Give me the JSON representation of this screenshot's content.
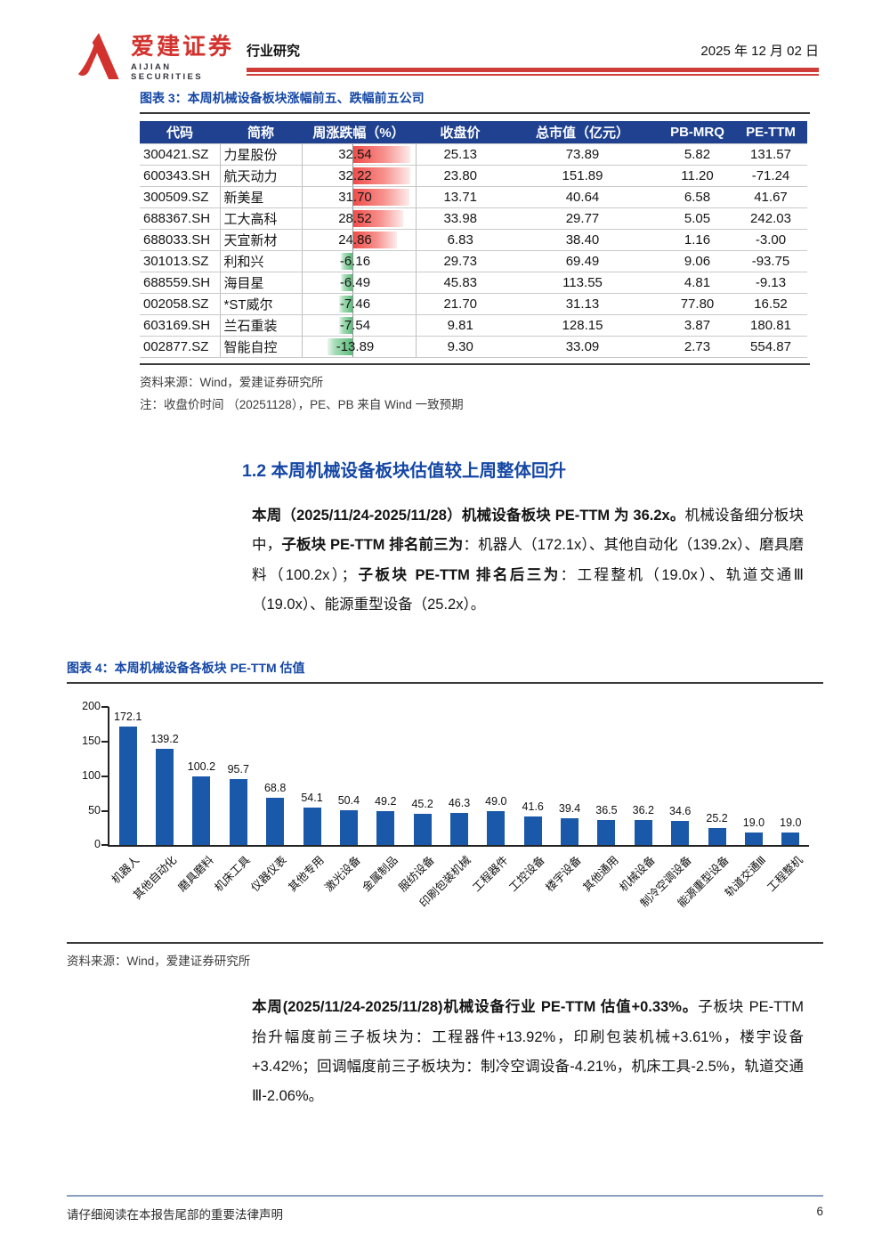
{
  "header": {
    "brand_cn": "爱建证券",
    "brand_en": "AIJIAN SECURITIES",
    "doc_type": "行业研究",
    "date": "2025 年 12 月 02 日"
  },
  "figure3": {
    "caption": "图表 3：本周机械设备板块涨幅前五、跌幅前五公司",
    "table": {
      "columns": [
        "代码",
        "简称",
        "周涨跌幅（%）",
        "收盘价",
        "总市值（亿元）",
        "PB-MRQ",
        "PE-TTM"
      ],
      "rows": [
        [
          "300421.SZ",
          "力星股份",
          "32.54",
          "25.13",
          "73.89",
          "5.82",
          "131.57"
        ],
        [
          "600343.SH",
          "航天动力",
          "32.22",
          "23.80",
          "151.89",
          "11.20",
          "-71.24"
        ],
        [
          "300509.SZ",
          "新美星",
          "31.70",
          "13.71",
          "40.64",
          "6.58",
          "41.67"
        ],
        [
          "688367.SH",
          "工大高科",
          "28.52",
          "33.98",
          "29.77",
          "5.05",
          "242.03"
        ],
        [
          "688033.SH",
          "天宜新材",
          "24.86",
          "6.83",
          "38.40",
          "1.16",
          "-3.00"
        ],
        [
          "301013.SZ",
          "利和兴",
          "-6.16",
          "29.73",
          "69.49",
          "9.06",
          "-93.75"
        ],
        [
          "688559.SH",
          "海目星",
          "-6.49",
          "45.83",
          "113.55",
          "4.81",
          "-9.13"
        ],
        [
          "002058.SZ",
          "*ST威尔",
          "-7.46",
          "21.70",
          "31.13",
          "77.80",
          "16.52"
        ],
        [
          "603169.SH",
          "兰石重装",
          "-7.54",
          "9.81",
          "128.15",
          "3.87",
          "180.81"
        ],
        [
          "002877.SZ",
          "智能自控",
          "-13.89",
          "9.30",
          "33.09",
          "2.73",
          "554.87"
        ]
      ]
    },
    "source": "资料来源：Wind，爱建证券研究所",
    "note": "注：收盘价时间 （20251128），PE、PB 来自 Wind 一致预期"
  },
  "section": {
    "heading": "1.2 本周机械设备板块估值较上周整体回升"
  },
  "body_text": {
    "p1_runs": [
      {
        "b": true,
        "t": "本周（2025/11/24-2025/11/28）机械设备板块 PE-TTM 为 36.2x。"
      },
      {
        "b": false,
        "t": "机械设备细分板块中，"
      },
      {
        "b": true,
        "t": "子板块 PE-TTM 排名前三为"
      },
      {
        "b": false,
        "t": "：机器人（172.1x）、其他自动化（139.2x）、磨具磨料（100.2x）；"
      },
      {
        "b": true,
        "t": "子板块 PE-TTM 排名后三为"
      },
      {
        "b": false,
        "t": "：工程整机（19.0x）、轨道交通Ⅲ（19.0x）、能源重型设备（25.2x）。"
      }
    ],
    "p2_runs": [
      {
        "b": true,
        "t": "本周(2025/11/24-2025/11/28)机械设备行业 PE-TTM 估值+0.33%。"
      },
      {
        "b": false,
        "t": "子板块 PE-TTM 抬升幅度前三子板块为：工程器件+13.92%，印刷包装机械+3.61%，楼宇设备+3.42%；回调幅度前三子板块为：制冷空调设备-4.21%，机床工具-2.5%，轨道交通Ⅲ-2.06%。"
      }
    ]
  },
  "figure4": {
    "caption": "图表 4：本周机械设备各板块 PE-TTM 估值",
    "source": "资料来源：Wind，爱建证券研究所"
  },
  "chart_data": {
    "type": "bar",
    "title": "本周机械设备各板块 PE-TTM 估值",
    "categories": [
      "机器人",
      "其他自动化",
      "磨具磨料",
      "机床工具",
      "仪器仪表",
      "其他专用",
      "激光设备",
      "金属制品",
      "服纺设备",
      "印刷包装机械",
      "工程器件",
      "工控设备",
      "楼宇设备",
      "其他通用",
      "机械设备",
      "制冷空调设备",
      "能源重型设备",
      "轨道交通Ⅲ",
      "工程整机"
    ],
    "values": [
      172.1,
      139.2,
      100.2,
      95.7,
      68.8,
      54.1,
      50.4,
      49.2,
      45.2,
      46.3,
      49.0,
      41.6,
      39.4,
      36.5,
      36.2,
      34.6,
      25.2,
      19.0,
      19.0
    ],
    "xlabel": "",
    "ylabel": "",
    "ylim": [
      0,
      200
    ],
    "yticks": [
      0,
      50,
      100,
      150,
      200
    ],
    "grid": false,
    "legend": false,
    "value_labels": true,
    "bar_color": "#1a58a9"
  },
  "footer": {
    "disclaimer": "请仔细阅读在本报告尾部的重要法律声明",
    "page": "6"
  },
  "colors": {
    "brand_red": "#d3332e",
    "caption_blue": "#1547a5",
    "table_header_bg": "#1f418f",
    "bar_blue": "#1a58a9",
    "positive_bar_red": "#ee4b47",
    "negative_bar_green": "#5dbd7c"
  }
}
